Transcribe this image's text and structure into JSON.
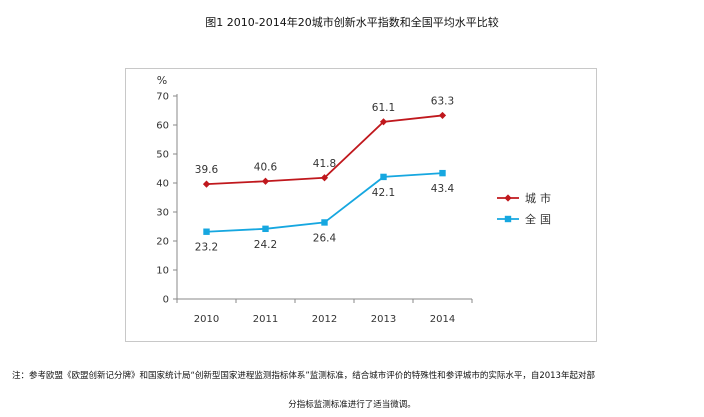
{
  "page": {
    "title": "图1 2010-2014年20城市创新水平指数和全国平均水平比较",
    "note_line1": "注：参考欧盟《欧盟创新记分牌》和国家统计局“创新型国家进程监测指标体系”监测标准，结合城市评价的特殊性和参评城市的实际水平，自2013年起对部",
    "note_line2": "分指标监测标准进行了适当微调。"
  },
  "chart_data": {
    "type": "line",
    "title": "图1 2010-2014年20城市创新水平指数和全国平均水平比较",
    "ylabel": "%",
    "xlabel": "",
    "categories": [
      "2010",
      "2011",
      "2012",
      "2013",
      "2014"
    ],
    "ylim": [
      0,
      70
    ],
    "yticks": [
      0,
      10,
      20,
      30,
      40,
      50,
      60,
      70
    ],
    "grid": false,
    "legend_position": "right",
    "series": [
      {
        "name": "城市",
        "color": "#c0181d",
        "marker": "diamond",
        "values": [
          39.6,
          40.6,
          41.8,
          61.1,
          63.3
        ],
        "labels": [
          "39.6",
          "40.6",
          "41.8",
          "61.1",
          "63.3"
        ]
      },
      {
        "name": "全国",
        "color": "#16a7e0",
        "marker": "square",
        "values": [
          23.2,
          24.2,
          26.4,
          42.1,
          43.4
        ],
        "labels": [
          "23.2",
          "24.2",
          "26.4",
          "42.1",
          "43.4"
        ]
      }
    ]
  }
}
